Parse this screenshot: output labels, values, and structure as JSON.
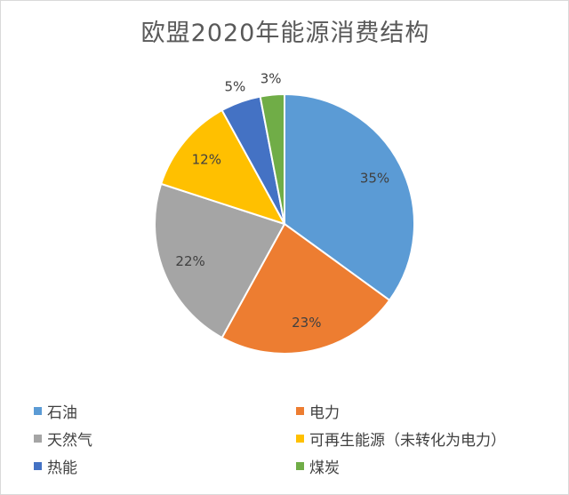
{
  "chart_data": {
    "type": "pie",
    "title": "欧盟2020年能源消费结构",
    "slices": [
      {
        "label": "石油",
        "value": 35,
        "display": "35%",
        "color": "#5b9bd5"
      },
      {
        "label": "电力",
        "value": 23,
        "display": "23%",
        "color": "#ed7d31"
      },
      {
        "label": "天然气",
        "value": 22,
        "display": "22%",
        "color": "#a5a5a5"
      },
      {
        "label": "可再生能源（未转化为电力）",
        "value": 12,
        "display": "12%",
        "color": "#ffc000"
      },
      {
        "label": "热能",
        "value": 5,
        "display": "5%",
        "color": "#4472c4"
      },
      {
        "label": "煤炭",
        "value": 3,
        "display": "3%",
        "color": "#70ad47"
      }
    ],
    "legend_position": "bottom"
  }
}
